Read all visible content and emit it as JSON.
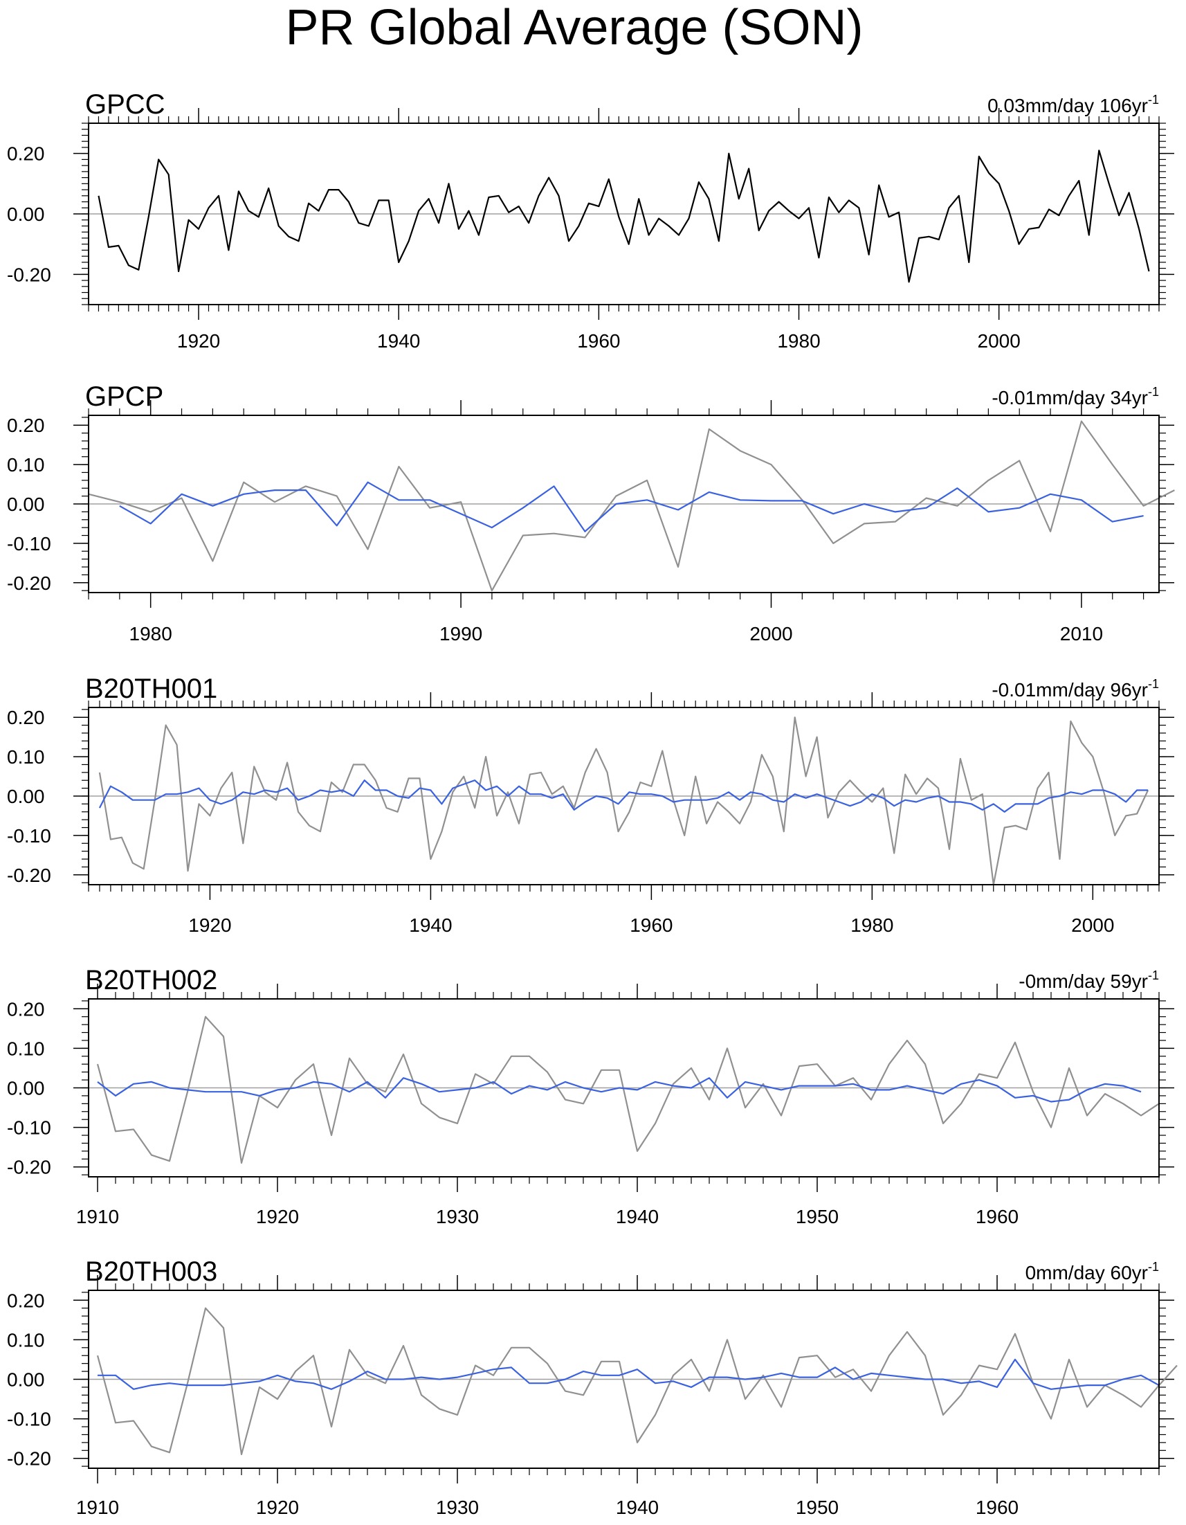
{
  "title": "PR Global Average (SON)",
  "colors": {
    "obs": "#000000",
    "obs_ref": "#909090",
    "model": "#3a62e0",
    "zero": "#a0a0a0",
    "frame": "#000000"
  },
  "chart_data": [
    {
      "type": "line",
      "name": "GPCC",
      "trend_label": "0.03mm/day 106yr",
      "trend_sup": "-1",
      "xlim": [
        1909,
        2016
      ],
      "ylim": [
        -0.3,
        0.3
      ],
      "yticks": [
        -0.2,
        0.0,
        0.2
      ],
      "ytick_labels": [
        "-0.20",
        "0.00",
        "0.20"
      ],
      "xticks": [
        1920,
        1940,
        1960,
        1980,
        2000
      ],
      "xtick_labels": [
        "1920",
        "1940",
        "1960",
        "1980",
        "2000"
      ],
      "series": [
        {
          "name": "GPCC",
          "color": "#000000",
          "x0": 1910,
          "values": [
            0.06,
            -0.11,
            -0.105,
            -0.17,
            -0.185,
            -0.01,
            0.18,
            0.13,
            -0.19,
            -0.02,
            -0.05,
            0.02,
            0.06,
            -0.12,
            0.075,
            0.01,
            -0.01,
            0.085,
            -0.04,
            -0.075,
            -0.09,
            0.035,
            0.01,
            0.08,
            0.08,
            0.04,
            -0.03,
            -0.04,
            0.045,
            0.045,
            -0.16,
            -0.09,
            0.01,
            0.05,
            -0.03,
            0.1,
            -0.05,
            0.01,
            -0.07,
            0.055,
            0.06,
            0.005,
            0.025,
            -0.03,
            0.06,
            0.12,
            0.06,
            -0.09,
            -0.04,
            0.035,
            0.025,
            0.115,
            -0.01,
            -0.1,
            0.05,
            -0.07,
            -0.015,
            -0.04,
            -0.07,
            -0.015,
            0.105,
            0.05,
            -0.09,
            0.2,
            0.05,
            0.15,
            -0.055,
            0.01,
            0.04,
            0.01,
            -0.015,
            0.02,
            -0.145,
            0.055,
            0.005,
            0.045,
            0.02,
            -0.135,
            0.095,
            -0.01,
            0.005,
            -0.225,
            -0.08,
            -0.075,
            -0.085,
            0.02,
            0.06,
            -0.16,
            0.19,
            0.135,
            0.1,
            0.01,
            -0.1,
            -0.05,
            -0.045,
            0.015,
            -0.005,
            0.06,
            0.11,
            -0.07,
            0.21,
            0.1,
            -0.005,
            0.07,
            -0.05,
            -0.19
          ]
        }
      ]
    },
    {
      "type": "line",
      "name": "GPCP",
      "trend_label": "-0.01mm/day 34yr",
      "trend_sup": "-1",
      "xlim": [
        1978,
        2012.5
      ],
      "ylim": [
        -0.225,
        0.225
      ],
      "yticks": [
        -0.2,
        -0.1,
        0.0,
        0.1,
        0.2
      ],
      "ytick_labels": [
        "-0.20",
        "-0.10",
        "0.00",
        "0.10",
        "0.20"
      ],
      "xticks": [
        1980,
        1990,
        2000,
        2010
      ],
      "xtick_labels": [
        "1980",
        "1990",
        "2000",
        "2010"
      ],
      "series": [
        {
          "name": "GPCC",
          "color": "#909090",
          "x0": 1978,
          "values": [
            0.025,
            0.005,
            -0.02,
            0.015,
            -0.145,
            0.055,
            0.005,
            0.045,
            0.02,
            -0.115,
            0.095,
            -0.01,
            0.005,
            -0.22,
            -0.08,
            -0.075,
            -0.085,
            0.02,
            0.06,
            -0.16,
            0.19,
            0.135,
            0.1,
            0.01,
            -0.1,
            -0.05,
            -0.045,
            0.015,
            -0.005,
            0.06,
            0.11,
            -0.07,
            0.21,
            0.1,
            -0.005,
            0.035
          ]
        },
        {
          "name": "GPCP",
          "color": "#3a62e0",
          "x0": 1979,
          "values": [
            -0.005,
            -0.05,
            0.025,
            -0.005,
            0.025,
            0.035,
            0.035,
            -0.055,
            0.055,
            0.01,
            0.01,
            -0.025,
            -0.06,
            -0.01,
            0.045,
            -0.07,
            0.0,
            0.01,
            -0.015,
            0.03,
            0.01,
            0.008,
            0.008,
            -0.025,
            0.0,
            -0.02,
            -0.01,
            0.04,
            -0.02,
            -0.01,
            0.025,
            0.01,
            -0.045,
            -0.03
          ]
        }
      ]
    },
    {
      "type": "line",
      "name": "B20TH001",
      "trend_label": "-0.01mm/day 96yr",
      "trend_sup": "-1",
      "xlim": [
        1909,
        2006
      ],
      "ylim": [
        -0.225,
        0.225
      ],
      "yticks": [
        -0.2,
        -0.1,
        0.0,
        0.1,
        0.2
      ],
      "ytick_labels": [
        "-0.20",
        "-0.10",
        "0.00",
        "0.10",
        "0.20"
      ],
      "xticks": [
        1920,
        1940,
        1960,
        1980,
        2000
      ],
      "xtick_labels": [
        "1920",
        "1940",
        "1960",
        "1980",
        "2000"
      ],
      "series": [
        {
          "name": "GPCC",
          "color": "#909090",
          "x0": 1910,
          "values": [
            0.06,
            -0.11,
            -0.105,
            -0.17,
            -0.185,
            -0.01,
            0.18,
            0.13,
            -0.19,
            -0.02,
            -0.05,
            0.02,
            0.06,
            -0.12,
            0.075,
            0.01,
            -0.01,
            0.085,
            -0.04,
            -0.075,
            -0.09,
            0.035,
            0.01,
            0.08,
            0.08,
            0.04,
            -0.03,
            -0.04,
            0.045,
            0.045,
            -0.16,
            -0.09,
            0.01,
            0.05,
            -0.03,
            0.1,
            -0.05,
            0.01,
            -0.07,
            0.055,
            0.06,
            0.005,
            0.025,
            -0.03,
            0.06,
            0.12,
            0.06,
            -0.09,
            -0.04,
            0.035,
            0.025,
            0.115,
            -0.01,
            -0.1,
            0.05,
            -0.07,
            -0.015,
            -0.04,
            -0.07,
            -0.015,
            0.105,
            0.05,
            -0.09,
            0.2,
            0.05,
            0.15,
            -0.055,
            0.01,
            0.04,
            0.01,
            -0.015,
            0.02,
            -0.145,
            0.055,
            0.005,
            0.045,
            0.02,
            -0.135,
            0.095,
            -0.01,
            0.005,
            -0.225,
            -0.08,
            -0.075,
            -0.085,
            0.02,
            0.06,
            -0.16,
            0.19,
            0.135,
            0.1,
            0.01,
            -0.1,
            -0.05,
            -0.045,
            0.015
          ]
        },
        {
          "name": "B20TH001",
          "color": "#3a62e0",
          "x0": 1910,
          "values": [
            -0.03,
            0.025,
            0.01,
            -0.01,
            -0.01,
            -0.01,
            0.005,
            0.005,
            0.01,
            0.02,
            -0.01,
            -0.02,
            -0.01,
            0.01,
            0.005,
            0.015,
            0.01,
            0.02,
            -0.01,
            0.0,
            0.015,
            0.01,
            0.015,
            0.0,
            0.04,
            0.015,
            0.015,
            0.0,
            -0.005,
            0.02,
            0.015,
            -0.02,
            0.02,
            0.03,
            0.04,
            0.015,
            0.025,
            0.0,
            0.025,
            0.005,
            0.005,
            -0.005,
            0.005,
            -0.035,
            -0.015,
            0.0,
            -0.005,
            -0.02,
            0.01,
            0.005,
            0.005,
            0.0,
            -0.015,
            -0.01,
            -0.01,
            -0.01,
            -0.005,
            0.01,
            -0.01,
            0.01,
            0.005,
            -0.01,
            -0.015,
            0.005,
            -0.005,
            0.005,
            -0.005,
            -0.015,
            -0.025,
            -0.015,
            0.005,
            -0.005,
            -0.025,
            -0.01,
            -0.015,
            -0.005,
            0.0,
            -0.015,
            -0.015,
            -0.02,
            -0.035,
            -0.02,
            -0.04,
            -0.02,
            -0.02,
            -0.02,
            -0.005,
            0.0,
            0.01,
            0.005,
            0.015,
            0.015,
            0.005,
            -0.015,
            0.015,
            0.015
          ]
        }
      ]
    },
    {
      "type": "line",
      "name": "B20TH002",
      "trend_label": "-0mm/day 59yr",
      "trend_sup": "-1",
      "xlim": [
        1909.5,
        1969
      ],
      "ylim": [
        -0.225,
        0.225
      ],
      "yticks": [
        -0.2,
        -0.1,
        0.0,
        0.1,
        0.2
      ],
      "ytick_labels": [
        "-0.20",
        "-0.10",
        "0.00",
        "0.10",
        "0.20"
      ],
      "xticks": [
        1910,
        1920,
        1930,
        1940,
        1950,
        1960
      ],
      "xtick_labels": [
        "1910",
        "1920",
        "1930",
        "1940",
        "1950",
        "1960"
      ],
      "series": [
        {
          "name": "GPCC",
          "color": "#909090",
          "x0": 1910,
          "values": [
            0.06,
            -0.11,
            -0.105,
            -0.17,
            -0.185,
            -0.01,
            0.18,
            0.13,
            -0.19,
            -0.02,
            -0.05,
            0.02,
            0.06,
            -0.12,
            0.075,
            0.01,
            -0.01,
            0.085,
            -0.04,
            -0.075,
            -0.09,
            0.035,
            0.01,
            0.08,
            0.08,
            0.04,
            -0.03,
            -0.04,
            0.045,
            0.045,
            -0.16,
            -0.09,
            0.01,
            0.05,
            -0.03,
            0.1,
            -0.05,
            0.01,
            -0.07,
            0.055,
            0.06,
            0.005,
            0.025,
            -0.03,
            0.06,
            0.12,
            0.06,
            -0.09,
            -0.04,
            0.035,
            0.025,
            0.115,
            -0.01,
            -0.1,
            0.05,
            -0.07,
            -0.015,
            -0.04,
            -0.07,
            -0.04
          ]
        },
        {
          "name": "B20TH002",
          "color": "#3a62e0",
          "x0": 1910,
          "values": [
            0.015,
            -0.02,
            0.01,
            0.015,
            0.0,
            -0.005,
            -0.01,
            -0.01,
            -0.01,
            -0.02,
            -0.005,
            0.0,
            0.015,
            0.01,
            -0.01,
            0.015,
            -0.025,
            0.025,
            0.01,
            -0.01,
            -0.005,
            0.0,
            0.015,
            -0.015,
            0.005,
            -0.005,
            0.015,
            0.0,
            -0.01,
            0.0,
            -0.005,
            0.015,
            0.005,
            0.0,
            0.025,
            -0.025,
            0.015,
            0.005,
            -0.005,
            0.005,
            0.005,
            0.005,
            0.01,
            -0.005,
            -0.005,
            0.005,
            -0.005,
            -0.015,
            0.01,
            0.02,
            0.005,
            -0.025,
            -0.02,
            -0.035,
            -0.03,
            -0.005,
            0.01,
            0.005,
            -0.01
          ]
        }
      ]
    },
    {
      "type": "line",
      "name": "B20TH003",
      "trend_label": "0mm/day 60yr",
      "trend_sup": "-1",
      "xlim": [
        1909.5,
        1969
      ],
      "ylim": [
        -0.225,
        0.225
      ],
      "yticks": [
        -0.2,
        -0.1,
        0.0,
        0.1,
        0.2
      ],
      "ytick_labels": [
        "-0.20",
        "-0.10",
        "0.00",
        "0.10",
        "0.20"
      ],
      "xticks": [
        1910,
        1920,
        1930,
        1940,
        1950,
        1960
      ],
      "xtick_labels": [
        "1910",
        "1920",
        "1930",
        "1940",
        "1950",
        "1960"
      ],
      "series": [
        {
          "name": "GPCC",
          "color": "#909090",
          "x0": 1910,
          "values": [
            0.06,
            -0.11,
            -0.105,
            -0.17,
            -0.185,
            -0.01,
            0.18,
            0.13,
            -0.19,
            -0.02,
            -0.05,
            0.02,
            0.06,
            -0.12,
            0.075,
            0.01,
            -0.01,
            0.085,
            -0.04,
            -0.075,
            -0.09,
            0.035,
            0.01,
            0.08,
            0.08,
            0.04,
            -0.03,
            -0.04,
            0.045,
            0.045,
            -0.16,
            -0.09,
            0.01,
            0.05,
            -0.03,
            0.1,
            -0.05,
            0.01,
            -0.07,
            0.055,
            0.06,
            0.005,
            0.025,
            -0.03,
            0.06,
            0.12,
            0.06,
            -0.09,
            -0.04,
            0.035,
            0.025,
            0.115,
            -0.01,
            -0.1,
            0.05,
            -0.07,
            -0.015,
            -0.04,
            -0.07,
            -0.015,
            0.035
          ]
        },
        {
          "name": "B20TH003",
          "color": "#3a62e0",
          "x0": 1910,
          "values": [
            0.01,
            0.01,
            -0.025,
            -0.015,
            -0.01,
            -0.015,
            -0.015,
            -0.015,
            -0.01,
            -0.005,
            0.01,
            -0.005,
            -0.01,
            -0.025,
            -0.005,
            0.02,
            0.0,
            0.0,
            0.005,
            0.0,
            0.005,
            0.015,
            0.025,
            0.03,
            -0.01,
            -0.01,
            0.0,
            0.02,
            0.01,
            0.01,
            0.025,
            -0.01,
            -0.005,
            -0.02,
            0.005,
            0.005,
            0.0,
            0.005,
            0.015,
            0.005,
            0.005,
            0.03,
            0.0,
            0.015,
            0.01,
            0.005,
            0.0,
            0.0,
            -0.01,
            -0.005,
            -0.02,
            0.05,
            -0.01,
            -0.025,
            -0.02,
            -0.015,
            -0.015,
            0.0,
            0.01,
            -0.015
          ]
        }
      ]
    }
  ]
}
